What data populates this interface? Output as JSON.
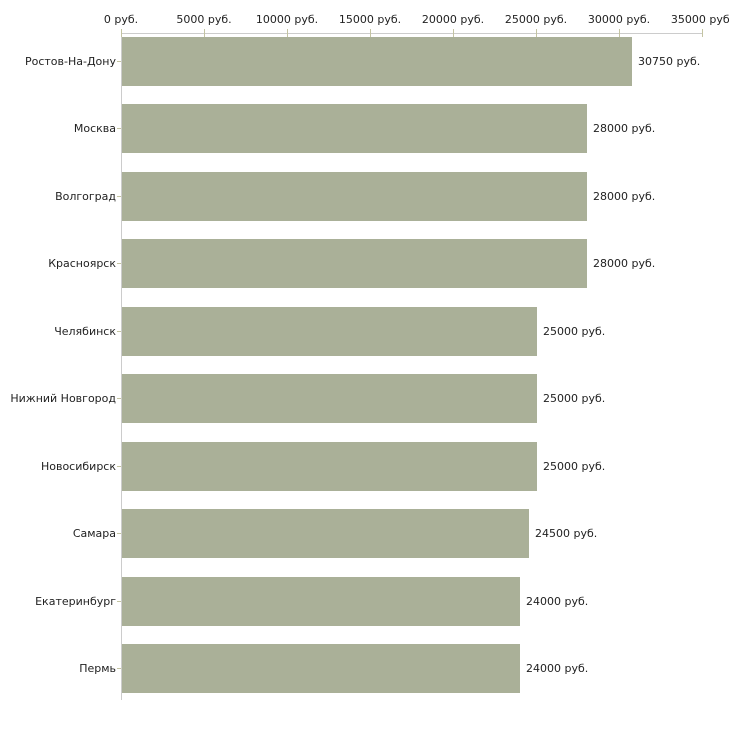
{
  "chart_data": {
    "type": "bar",
    "orientation": "horizontal",
    "title": "",
    "xlabel": "",
    "ylabel": "",
    "unit": "руб.",
    "categories": [
      "Ростов-На-Дону",
      "Москва",
      "Волгоград",
      "Красноярск",
      "Челябинск",
      "Нижний Новгород",
      "Новосибирск",
      "Самара",
      "Екатеринбург",
      "Пермь"
    ],
    "values": [
      30750,
      28000,
      28000,
      28000,
      25000,
      25000,
      25000,
      24500,
      24000,
      24000
    ],
    "value_labels": [
      "30750 руб.",
      "28000 руб.",
      "28000 руб.",
      "28000 руб.",
      "25000 руб.",
      "25000 руб.",
      "25000 руб.",
      "24500 руб.",
      "24000 руб.",
      "24000 руб."
    ],
    "x_axis": {
      "position": "top",
      "range": [
        0,
        35000
      ],
      "ticks": [
        0,
        5000,
        10000,
        15000,
        20000,
        25000,
        30000,
        35000
      ],
      "tick_labels": [
        "0 руб.",
        "5000 руб.",
        "10000 руб.",
        "15000 руб.",
        "20000 руб.",
        "25000 руб.",
        "30000 руб.",
        "35000 руб."
      ]
    },
    "legend": null,
    "grid": false,
    "colors": {
      "bar": "#aab098",
      "axis_line": "#cccccc",
      "tick_mark": "#c4c4a2",
      "text": "#222222",
      "background": "#ffffff"
    }
  }
}
